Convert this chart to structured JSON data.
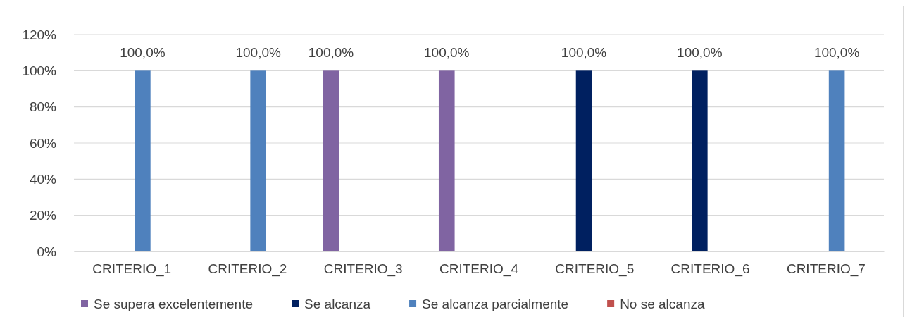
{
  "chart_data": {
    "type": "bar",
    "categories": [
      "CRITERIO_1",
      "CRITERIO_2",
      "CRITERIO_3",
      "CRITERIO_4",
      "CRITERIO_5",
      "CRITERIO_6",
      "CRITERIO_7"
    ],
    "series": [
      {
        "name": "Se supera excelentemente",
        "color": "#8064a2",
        "values": [
          null,
          null,
          100,
          100,
          null,
          null,
          null
        ],
        "value_labels": [
          null,
          null,
          "100,0%",
          "100,0%",
          null,
          null,
          null
        ]
      },
      {
        "name": "Se alcanza",
        "color": "#002060",
        "values": [
          null,
          null,
          null,
          null,
          100,
          100,
          null
        ],
        "value_labels": [
          null,
          null,
          null,
          null,
          "100,0%",
          "100,0%",
          null
        ]
      },
      {
        "name": "Se alcanza parcialmente",
        "color": "#4f81bd",
        "values": [
          100,
          100,
          null,
          null,
          null,
          null,
          100
        ],
        "value_labels": [
          "100,0%",
          "100,0%",
          null,
          null,
          null,
          null,
          "100,0%"
        ]
      },
      {
        "name": "No se alcanza",
        "color": "#c0504d",
        "values": [
          null,
          null,
          null,
          null,
          null,
          null,
          null
        ],
        "value_labels": [
          null,
          null,
          null,
          null,
          null,
          null,
          null
        ]
      }
    ],
    "ylim": [
      0,
      120
    ],
    "yticks": [
      {
        "value": 0,
        "label": "0%"
      },
      {
        "value": 20,
        "label": "20%"
      },
      {
        "value": 40,
        "label": "40%"
      },
      {
        "value": 60,
        "label": "60%"
      },
      {
        "value": 80,
        "label": "80%"
      },
      {
        "value": 100,
        "label": "100%"
      },
      {
        "value": 120,
        "label": "120%"
      }
    ],
    "grid": "y",
    "legend": "bottom"
  }
}
